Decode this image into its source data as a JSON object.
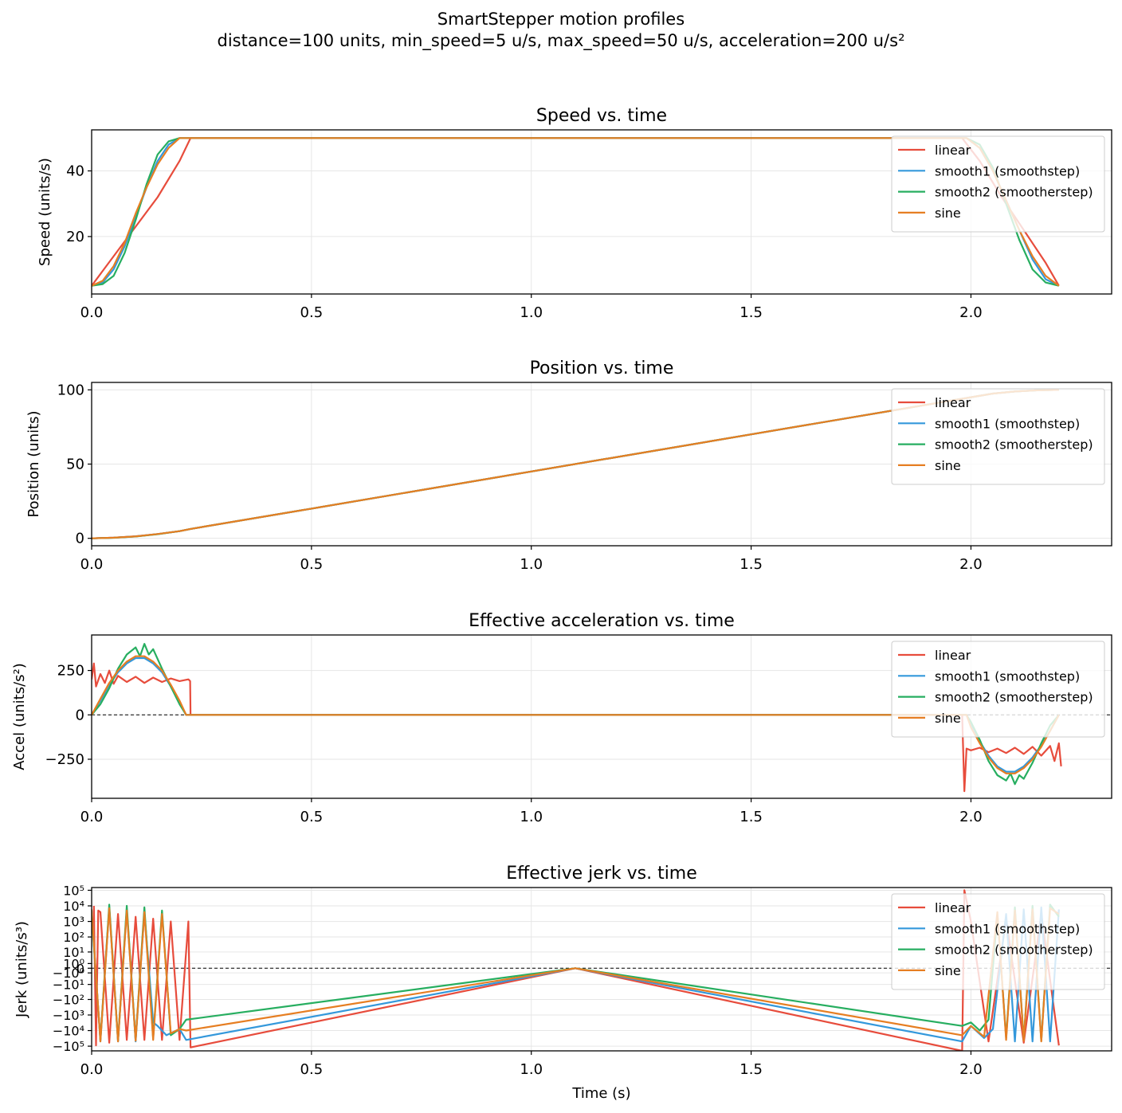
{
  "figure": {
    "title": "SmartStepper motion profiles",
    "subtitle": "distance=100 units, min_speed=5 u/s, max_speed=50 u/s, acceleration=200 u/s²"
  },
  "colors": {
    "linear": "#e74c3c",
    "smooth1": "#3498db",
    "smooth2": "#27ae60",
    "sine": "#e67e22"
  },
  "chart_data": [
    {
      "type": "line",
      "title": "Speed vs. time",
      "xlabel": "",
      "ylabel": "Speed (units/s)",
      "xlim": [
        0,
        2.32
      ],
      "ylim": [
        2.5,
        52.5
      ],
      "xticks": [
        "0.0",
        "0.5",
        "1.0",
        "1.5",
        "2.0"
      ],
      "yticks": [
        "20",
        "40"
      ],
      "grid": true,
      "legend": "top-right",
      "series": [
        {
          "name": "linear",
          "color": "#e74c3c",
          "x": [
            0,
            0.05,
            0.1,
            0.15,
            0.2,
            0.225,
            1.98,
            2.02,
            2.07,
            2.12,
            2.17,
            2.2
          ],
          "y": [
            5,
            14,
            23,
            32,
            43,
            50,
            50,
            43,
            32,
            22,
            12,
            5
          ]
        },
        {
          "name": "smooth1 (smoothstep)",
          "color": "#3498db",
          "x": [
            0,
            0.025,
            0.05,
            0.075,
            0.1,
            0.125,
            0.15,
            0.175,
            0.2,
            0.215,
            1.99,
            2.02,
            2.05,
            2.08,
            2.11,
            2.14,
            2.17,
            2.2
          ],
          "y": [
            5,
            6,
            10,
            17,
            26,
            35,
            43,
            48,
            50,
            50,
            50,
            47,
            40,
            31,
            22,
            13,
            7,
            5
          ]
        },
        {
          "name": "smooth2 (smootherstep)",
          "color": "#27ae60",
          "x": [
            0,
            0.025,
            0.05,
            0.075,
            0.1,
            0.125,
            0.15,
            0.175,
            0.2,
            0.215,
            1.99,
            2.02,
            2.05,
            2.08,
            2.11,
            2.14,
            2.17,
            2.2
          ],
          "y": [
            5,
            5.5,
            8,
            15,
            25,
            36,
            45,
            49,
            50,
            50,
            50,
            48,
            41,
            30,
            19,
            10,
            6,
            5
          ]
        },
        {
          "name": "sine",
          "color": "#e67e22",
          "x": [
            0,
            0.025,
            0.05,
            0.075,
            0.1,
            0.125,
            0.15,
            0.175,
            0.2,
            0.215,
            1.99,
            2.02,
            2.05,
            2.08,
            2.11,
            2.14,
            2.17,
            2.2
          ],
          "y": [
            5,
            6.5,
            11,
            18,
            27,
            35,
            42,
            47,
            50,
            50,
            50,
            47,
            40,
            31,
            22,
            14,
            8,
            5
          ]
        }
      ]
    },
    {
      "type": "line",
      "title": "Position vs. time",
      "xlabel": "",
      "ylabel": "Position (units)",
      "xlim": [
        0,
        2.32
      ],
      "ylim": [
        -5,
        105
      ],
      "xticks": [
        "0.0",
        "0.5",
        "1.0",
        "1.5",
        "2.0"
      ],
      "yticks": [
        "0",
        "50",
        "100"
      ],
      "grid": true,
      "legend": "top-right",
      "series": [
        {
          "name": "linear",
          "color": "#e74c3c",
          "x": [
            0,
            0.05,
            0.1,
            0.15,
            0.2,
            0.225,
            0.5,
            1.0,
            1.5,
            1.98,
            2.05,
            2.1,
            2.15,
            2.2
          ],
          "y": [
            0,
            0.5,
            1.4,
            2.9,
            4.8,
            6.3,
            20,
            45,
            70,
            94,
            97.5,
            98.9,
            99.7,
            100
          ]
        },
        {
          "name": "smooth1 (smoothstep)",
          "color": "#3498db",
          "x": [
            0,
            0.05,
            0.1,
            0.15,
            0.2,
            0.225,
            0.5,
            1.0,
            1.5,
            1.98,
            2.05,
            2.1,
            2.15,
            2.2
          ],
          "y": [
            0,
            0.4,
            1.3,
            2.9,
            4.8,
            6.3,
            20,
            45,
            70,
            94,
            97.5,
            98.9,
            99.7,
            100
          ]
        },
        {
          "name": "smooth2 (smootherstep)",
          "color": "#27ae60",
          "x": [
            0,
            0.05,
            0.1,
            0.15,
            0.2,
            0.225,
            0.5,
            1.0,
            1.5,
            1.98,
            2.05,
            2.1,
            2.15,
            2.2
          ],
          "y": [
            0,
            0.35,
            1.2,
            2.8,
            4.8,
            6.3,
            20,
            45,
            70,
            94,
            97.5,
            98.9,
            99.7,
            100
          ]
        },
        {
          "name": "sine",
          "color": "#e67e22",
          "x": [
            0,
            0.05,
            0.1,
            0.15,
            0.2,
            0.225,
            0.5,
            1.0,
            1.5,
            1.98,
            2.05,
            2.1,
            2.15,
            2.2
          ],
          "y": [
            0,
            0.4,
            1.3,
            2.9,
            4.8,
            6.3,
            20,
            45,
            70,
            94,
            97.5,
            98.9,
            99.7,
            100
          ]
        }
      ]
    },
    {
      "type": "line",
      "title": "Effective acceleration vs. time",
      "xlabel": "",
      "ylabel": "Accel (units/s²)",
      "xlim": [
        0,
        2.32
      ],
      "ylim": [
        -470,
        450
      ],
      "xticks": [
        "0.0",
        "0.5",
        "1.0",
        "1.5",
        "2.0"
      ],
      "yticks": [
        "−250",
        "0",
        "250"
      ],
      "grid": true,
      "legend": "top-right",
      "series": [
        {
          "name": "linear",
          "color": "#e74c3c",
          "x": [
            0,
            0.005,
            0.01,
            0.02,
            0.03,
            0.04,
            0.05,
            0.06,
            0.08,
            0.1,
            0.12,
            0.14,
            0.16,
            0.18,
            0.2,
            0.22,
            0.224,
            0.225,
            1.98,
            1.985,
            1.99,
            2.0,
            2.02,
            2.04,
            2.06,
            2.08,
            2.1,
            2.12,
            2.14,
            2.16,
            2.18,
            2.19,
            2.2,
            2.205
          ],
          "y": [
            200,
            290,
            160,
            230,
            180,
            250,
            175,
            220,
            185,
            215,
            180,
            210,
            185,
            205,
            190,
            200,
            190,
            0,
            0,
            -430,
            -190,
            -200,
            -185,
            -210,
            -190,
            -215,
            -185,
            -220,
            -180,
            -230,
            -175,
            -260,
            -160,
            -290
          ]
        },
        {
          "name": "smooth1 (smoothstep)",
          "color": "#3498db",
          "x": [
            0,
            0.02,
            0.04,
            0.06,
            0.08,
            0.1,
            0.12,
            0.14,
            0.16,
            0.18,
            0.2,
            0.215,
            1.99,
            2.0,
            2.02,
            2.04,
            2.06,
            2.08,
            2.1,
            2.12,
            2.14,
            2.16,
            2.18,
            2.2
          ],
          "y": [
            0,
            80,
            170,
            240,
            290,
            320,
            320,
            290,
            240,
            160,
            70,
            0,
            0,
            -60,
            -150,
            -230,
            -290,
            -320,
            -320,
            -290,
            -240,
            -170,
            -90,
            0
          ]
        },
        {
          "name": "smooth2 (smootherstep)",
          "color": "#27ae60",
          "x": [
            0,
            0.02,
            0.04,
            0.06,
            0.08,
            0.1,
            0.11,
            0.12,
            0.13,
            0.14,
            0.16,
            0.18,
            0.2,
            0.215,
            1.99,
            2.0,
            2.02,
            2.04,
            2.06,
            2.08,
            2.09,
            2.1,
            2.11,
            2.12,
            2.14,
            2.16,
            2.18,
            2.2
          ],
          "y": [
            0,
            60,
            150,
            260,
            340,
            380,
            330,
            400,
            340,
            370,
            260,
            160,
            60,
            0,
            0,
            -40,
            -140,
            -260,
            -340,
            -370,
            -330,
            -390,
            -340,
            -360,
            -270,
            -160,
            -60,
            0
          ]
        },
        {
          "name": "sine",
          "color": "#e67e22",
          "x": [
            0,
            0.02,
            0.04,
            0.06,
            0.08,
            0.1,
            0.12,
            0.14,
            0.16,
            0.18,
            0.2,
            0.215,
            1.99,
            2.0,
            2.02,
            2.04,
            2.06,
            2.08,
            2.1,
            2.12,
            2.14,
            2.16,
            2.18,
            2.2
          ],
          "y": [
            0,
            90,
            180,
            250,
            300,
            330,
            330,
            300,
            250,
            170,
            80,
            0,
            0,
            -70,
            -160,
            -240,
            -300,
            -330,
            -330,
            -300,
            -250,
            -180,
            -90,
            0
          ]
        }
      ]
    },
    {
      "type": "line",
      "title": "Effective jerk vs. time",
      "xlabel": "Time (s)",
      "ylabel": "Jerk (units/s³)",
      "xlim": [
        0,
        2.32
      ],
      "yscale": "symlog",
      "ylim": [
        -200000,
        150000
      ],
      "xticks": [
        "0.0",
        "0.5",
        "1.0",
        "1.5",
        "2.0"
      ],
      "yticks": [
        "−10⁵",
        "−10⁴",
        "−10³",
        "−10²",
        "−10¹",
        "−10⁰",
        "0",
        "10⁰",
        "10¹",
        "10²",
        "10³",
        "10⁴",
        "10⁵"
      ],
      "grid": true,
      "legend": "top-right",
      "series": [
        {
          "name": "linear",
          "color": "#e74c3c",
          "x": [
            0.005,
            0.01,
            0.015,
            0.02,
            0.04,
            0.06,
            0.08,
            0.1,
            0.12,
            0.14,
            0.16,
            0.18,
            0.2,
            0.22,
            0.225,
            1.1,
            1.98,
            1.985,
            2.0,
            2.04,
            2.08,
            2.12,
            2.16,
            2.2
          ],
          "y": [
            10000,
            -90000,
            5000,
            4000,
            -60000,
            3000,
            -40000,
            2000,
            -40000,
            1500,
            -40000,
            1000,
            -40000,
            1000,
            -120000,
            0,
            -200000,
            100000,
            1000,
            -50000,
            1500,
            -60000,
            3000,
            -90000
          ]
        },
        {
          "name": "smooth1 (smoothstep)",
          "color": "#3498db",
          "x": [
            0.0,
            0.02,
            0.04,
            0.06,
            0.08,
            0.1,
            0.12,
            0.14,
            0.15,
            0.17,
            0.2,
            0.215,
            1.1,
            1.98,
            2.0,
            2.03,
            2.05,
            2.08,
            2.1,
            2.12,
            2.14,
            2.16,
            2.18,
            2.2
          ],
          "y": [
            5000,
            -50000,
            8000,
            -50000,
            6000,
            -50000,
            4000,
            -3000,
            -5000,
            -20000,
            -8000,
            -40000,
            0,
            -50000,
            -5000,
            -30000,
            -8000,
            3000,
            -50000,
            6000,
            -50000,
            8000,
            -50000,
            6000
          ]
        },
        {
          "name": "smooth2 (smootherstep)",
          "color": "#27ae60",
          "x": [
            0.0,
            0.02,
            0.04,
            0.06,
            0.08,
            0.1,
            0.12,
            0.14,
            0.16,
            0.18,
            0.2,
            0.215,
            1.1,
            1.98,
            2.0,
            2.02,
            2.04,
            2.06,
            2.08,
            2.1,
            2.12,
            2.14,
            2.16,
            2.18,
            2.2
          ],
          "y": [
            3000,
            -40000,
            12000,
            -45000,
            10000,
            -40000,
            8000,
            -30000,
            5000,
            -20000,
            -8000,
            -2000,
            0,
            -5000,
            -3000,
            -10000,
            -2000,
            3000,
            -30000,
            8000,
            -40000,
            10000,
            -45000,
            12000,
            2000
          ]
        },
        {
          "name": "sine",
          "color": "#e67e22",
          "x": [
            0.0,
            0.02,
            0.04,
            0.06,
            0.08,
            0.1,
            0.12,
            0.14,
            0.16,
            0.18,
            0.2,
            0.215,
            1.1,
            1.98,
            2.0,
            2.03,
            2.06,
            2.08,
            2.1,
            2.12,
            2.14,
            2.16,
            2.18,
            2.2
          ],
          "y": [
            6000,
            -50000,
            7000,
            -50000,
            5000,
            -45000,
            4000,
            -40000,
            3000,
            -15000,
            -8000,
            -10000,
            0,
            -20000,
            -5000,
            -25000,
            4000,
            -40000,
            5000,
            -45000,
            6000,
            -50000,
            7000,
            3000
          ]
        }
      ]
    }
  ]
}
